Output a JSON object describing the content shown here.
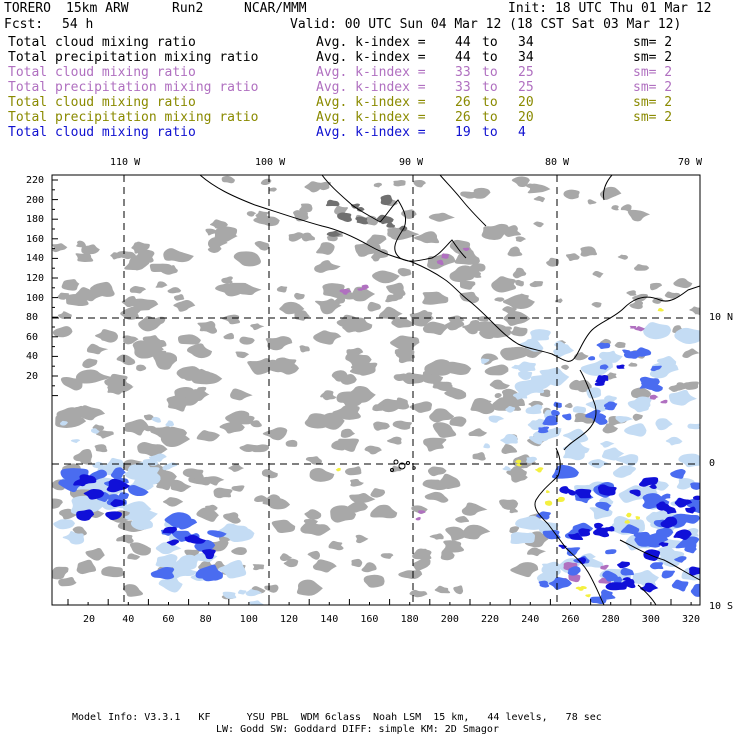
{
  "header": {
    "model": "TORERO",
    "resolution": "15km ARW",
    "run": "Run2",
    "center": "NCAR/MMM",
    "init": "Init: 18 UTC Thu 01 Mar 12",
    "fcst_label": "Fcst:",
    "fcst_value": "54 h",
    "valid": "Valid: 00 UTC Sun 04 Mar 12 (18 CST Sat 03 Mar 12)"
  },
  "legend": [
    {
      "field": "Total cloud mixing ratio",
      "stat": "Avg. k-index =",
      "from": "44",
      "to_word": "to",
      "to": "34",
      "smooth": "sm= 2",
      "color": "#000000"
    },
    {
      "field": "Total precipitation mixing ratio",
      "stat": "Avg. k-index =",
      "from": "44",
      "to_word": "to",
      "to": "34",
      "smooth": "sm= 2",
      "color": "#000000"
    },
    {
      "field": "Total cloud mixing ratio",
      "stat": "Avg. k-index =",
      "from": "33",
      "to_word": "to",
      "to": "25",
      "smooth": "sm= 2",
      "color": "#b070c0"
    },
    {
      "field": "Total precipitation mixing ratio",
      "stat": "Avg. k-index =",
      "from": "33",
      "to_word": "to",
      "to": "25",
      "smooth": "sm= 2",
      "color": "#b070c0"
    },
    {
      "field": "Total cloud mixing ratio",
      "stat": "Avg. k-index =",
      "from": "26",
      "to_word": "to",
      "to": "20",
      "smooth": "sm= 2",
      "color": "#8a8a00"
    },
    {
      "field": "Total precipitation mixing ratio",
      "stat": "Avg. k-index =",
      "from": "26",
      "to_word": "to",
      "to": "20",
      "smooth": "sm= 2",
      "color": "#8a8a00"
    },
    {
      "field": "Total cloud mixing ratio",
      "stat": "Avg. k-index =",
      "from": "19",
      "to_word": "to",
      "to": "4",
      "smooth": "",
      "color": "#1010d0"
    }
  ],
  "map": {
    "lon_labels": [
      "110 W",
      "100 W",
      "90 W",
      "80 W",
      "70 W"
    ],
    "lat_labels": [
      "10 N",
      "0",
      "10 S"
    ],
    "y_ticks": [
      "220",
      "200",
      "180",
      "160",
      "140",
      "120",
      "100",
      "80",
      "60",
      "40",
      "20"
    ],
    "x_ticks": [
      "20",
      "40",
      "60",
      "80",
      "100",
      "120",
      "140",
      "160",
      "180",
      "200",
      "220",
      "240",
      "260",
      "280",
      "300",
      "320"
    ],
    "colors": {
      "gray_cloud": "#a8a8a8",
      "light_blue": "#c4dcf4",
      "mid_blue": "#4a6cf0",
      "deep_blue": "#1010d8",
      "purple": "#b070c0",
      "yellow": "#f4f040"
    }
  },
  "footer": {
    "line1": "Model Info: V3.3.1   KF      YSU PBL  WDM 6class  Noah LSM  15 km,   44 levels,   78 sec",
    "line2": "LW: Godd SW: Goddard DIFF: simple KM: 2D Smagor"
  }
}
